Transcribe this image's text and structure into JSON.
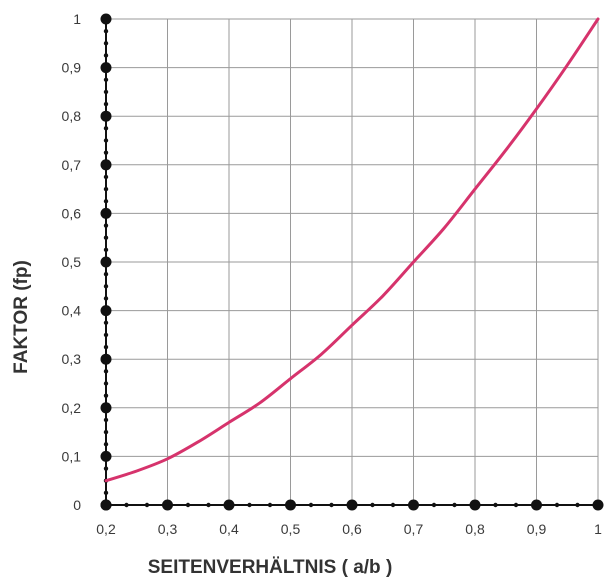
{
  "chart_data": {
    "type": "line",
    "xlabel": "SEITENVERHÄLTNIS  ( a/b )",
    "ylabel": "FAKTOR (fp)",
    "xlim": [
      0.2,
      1.0
    ],
    "ylim": [
      0,
      1.0
    ],
    "grid": true,
    "x_ticks": [
      "0,2",
      "0,3",
      "0,4",
      "0,5",
      "0,6",
      "0,7",
      "0,8",
      "0,9",
      "1"
    ],
    "y_ticks": [
      "0",
      "0,1",
      "0,2",
      "0,3",
      "0,4",
      "0,5",
      "0,6",
      "0,7",
      "0,8",
      "0,9",
      "1"
    ],
    "line_color": "#d6336c",
    "series": [
      {
        "x": [
          0.2,
          0.25,
          0.3,
          0.35,
          0.4,
          0.45,
          0.5,
          0.55,
          0.6,
          0.65,
          0.7,
          0.75,
          0.8,
          0.85,
          0.9,
          0.95,
          1.0
        ],
        "y": [
          0.05,
          0.07,
          0.095,
          0.13,
          0.17,
          0.21,
          0.26,
          0.31,
          0.37,
          0.43,
          0.5,
          0.57,
          0.65,
          0.73,
          0.815,
          0.905,
          1.0
        ]
      }
    ]
  }
}
